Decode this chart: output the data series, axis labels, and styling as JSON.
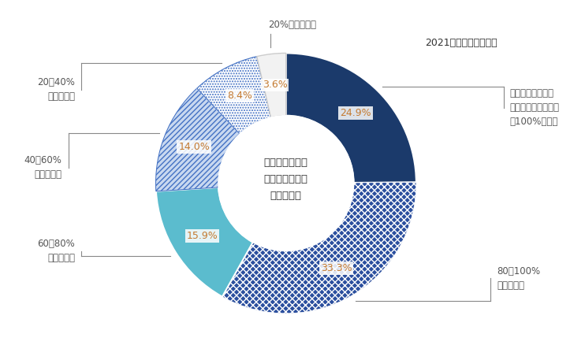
{
  "segments": [
    {
      "label": "公的年金・恩給の\n総所得に占める割合\nが100%の世帯",
      "value": 24.9,
      "pct_label": "24.9%"
    },
    {
      "label": "80〜100%\n未満の世帯",
      "value": 33.3,
      "pct_label": "33.3%"
    },
    {
      "label": "60〜80%\n未満の世帯",
      "value": 15.9,
      "pct_label": "15.9%"
    },
    {
      "label": "40〜60%\n未満の世帯",
      "value": 14.0,
      "pct_label": "14.0%"
    },
    {
      "label": "20〜40%\n未満の世帯",
      "value": 8.4,
      "pct_label": "8.4%"
    },
    {
      "label": "20%未満の世帯",
      "value": 3.6,
      "pct_label": "3.6%"
    }
  ],
  "seg_colors": [
    "#1b3a6b",
    "#2b4f9e",
    "#5bbcce",
    "#5a8fd4",
    "#c0d8ec",
    "#f2f2f2"
  ],
  "center_text": "公的年金・恩給\nを受給している\n高齢者世帯",
  "annotation": "2021（令和３）年調査",
  "bg": "#ffffff",
  "inner_r": 0.52,
  "outer_r": 1.0,
  "start_angle": 90,
  "label_color": "#555555",
  "pct_text_color": "#c47a30",
  "annotation_color": "#333333"
}
